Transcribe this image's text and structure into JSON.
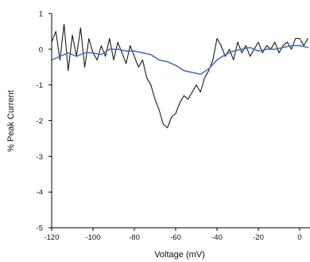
{
  "chart_data": {
    "type": "line",
    "title": "",
    "xlabel": "Voltage (mV)",
    "ylabel": "% Peak Current",
    "xlim": [
      -120,
      5
    ],
    "ylim": [
      -5,
      1
    ],
    "xticks": [
      -120,
      -100,
      -80,
      -60,
      -40,
      -20,
      0
    ],
    "yticks": [
      -5,
      -4,
      -3,
      -2,
      -1,
      0,
      1
    ],
    "grid": false,
    "legend": "none",
    "series": [
      {
        "color": "#1a1a1a",
        "x": [
          -120,
          -118,
          -116,
          -114,
          -112,
          -110,
          -108,
          -106,
          -104,
          -102,
          -100,
          -98,
          -96,
          -94,
          -92,
          -90,
          -88,
          -86,
          -84,
          -82,
          -80,
          -78,
          -76,
          -74,
          -72,
          -70,
          -68,
          -66,
          -64,
          -62,
          -60,
          -58,
          -56,
          -54,
          -52,
          -50,
          -48,
          -46,
          -44,
          -42,
          -40,
          -38,
          -36,
          -34,
          -32,
          -30,
          -28,
          -26,
          -24,
          -22,
          -20,
          -18,
          -16,
          -14,
          -12,
          -10,
          -8,
          -6,
          -4,
          -2,
          0,
          2,
          4
        ],
        "y": [
          0.2,
          0.5,
          -0.3,
          0.7,
          -0.6,
          0.4,
          -0.2,
          0.6,
          -0.5,
          0.3,
          -0.1,
          -0.3,
          0.1,
          -0.2,
          0.3,
          -0.3,
          0.2,
          -0.1,
          -0.4,
          0.1,
          -0.2,
          -0.5,
          -0.3,
          -0.8,
          -1.0,
          -1.4,
          -1.7,
          -2.1,
          -2.2,
          -1.9,
          -1.8,
          -1.5,
          -1.3,
          -1.4,
          -1.2,
          -1.0,
          -1.2,
          -0.8,
          -0.6,
          -0.3,
          0.3,
          0.1,
          -0.2,
          0.0,
          -0.3,
          0.2,
          -0.1,
          0.1,
          -0.2,
          0.0,
          0.2,
          -0.1,
          0.1,
          0.0,
          0.2,
          -0.1,
          0.1,
          0.2,
          0.0,
          0.3,
          0.3,
          0.1,
          0.3
        ]
      },
      {
        "color": "#4a6fc4",
        "x": [
          -120,
          -116,
          -112,
          -108,
          -104,
          -100,
          -96,
          -92,
          -88,
          -84,
          -80,
          -76,
          -72,
          -68,
          -64,
          -60,
          -56,
          -52,
          -48,
          -44,
          -40,
          -36,
          -32,
          -28,
          -24,
          -20,
          -16,
          -12,
          -8,
          -4,
          0,
          4
        ],
        "y": [
          -0.3,
          -0.2,
          -0.1,
          -0.2,
          -0.1,
          -0.1,
          -0.15,
          0.0,
          0.0,
          -0.05,
          -0.05,
          -0.1,
          -0.15,
          -0.3,
          -0.35,
          -0.45,
          -0.6,
          -0.65,
          -0.7,
          -0.55,
          -0.3,
          -0.15,
          -0.05,
          0.0,
          0.05,
          -0.05,
          0.0,
          0.0,
          0.05,
          0.1,
          0.1,
          0.05
        ]
      }
    ]
  }
}
